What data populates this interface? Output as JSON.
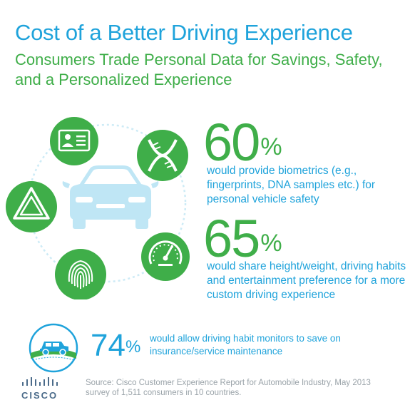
{
  "title": "Cost of a Better Driving Experience",
  "subtitle": "Consumers Trade Personal Data for Savings, Safety, and a Personalized Experience",
  "stats": [
    {
      "number": "60",
      "pct": "%",
      "text": "would provide biometrics (e.g., fingerprints, DNA samples etc.) for personal vehicle safety"
    },
    {
      "number": "65",
      "pct": "%",
      "text": "would share height/weight, driving habits and entertainment preference for a more custom driving experience"
    },
    {
      "number": "74",
      "pct": "%",
      "text": "would allow driving habit monitors to save on insurance/service maintenance"
    }
  ],
  "source": "Source: Cisco Customer Experience Report for Automobile Industry, May 2013 survey of 1,511 consumers in 10 countries.",
  "logo": {
    "text": "CISCO"
  },
  "icons": [
    "id-card-icon",
    "dna-icon",
    "warning-triangle-icon",
    "car-icon",
    "speedometer-icon",
    "fingerprint-icon",
    "car-road-icon"
  ],
  "colors": {
    "green": "#3fae49",
    "blue": "#1fa3db",
    "car": "#bfe6f5",
    "gray": "#9aa3a9"
  }
}
